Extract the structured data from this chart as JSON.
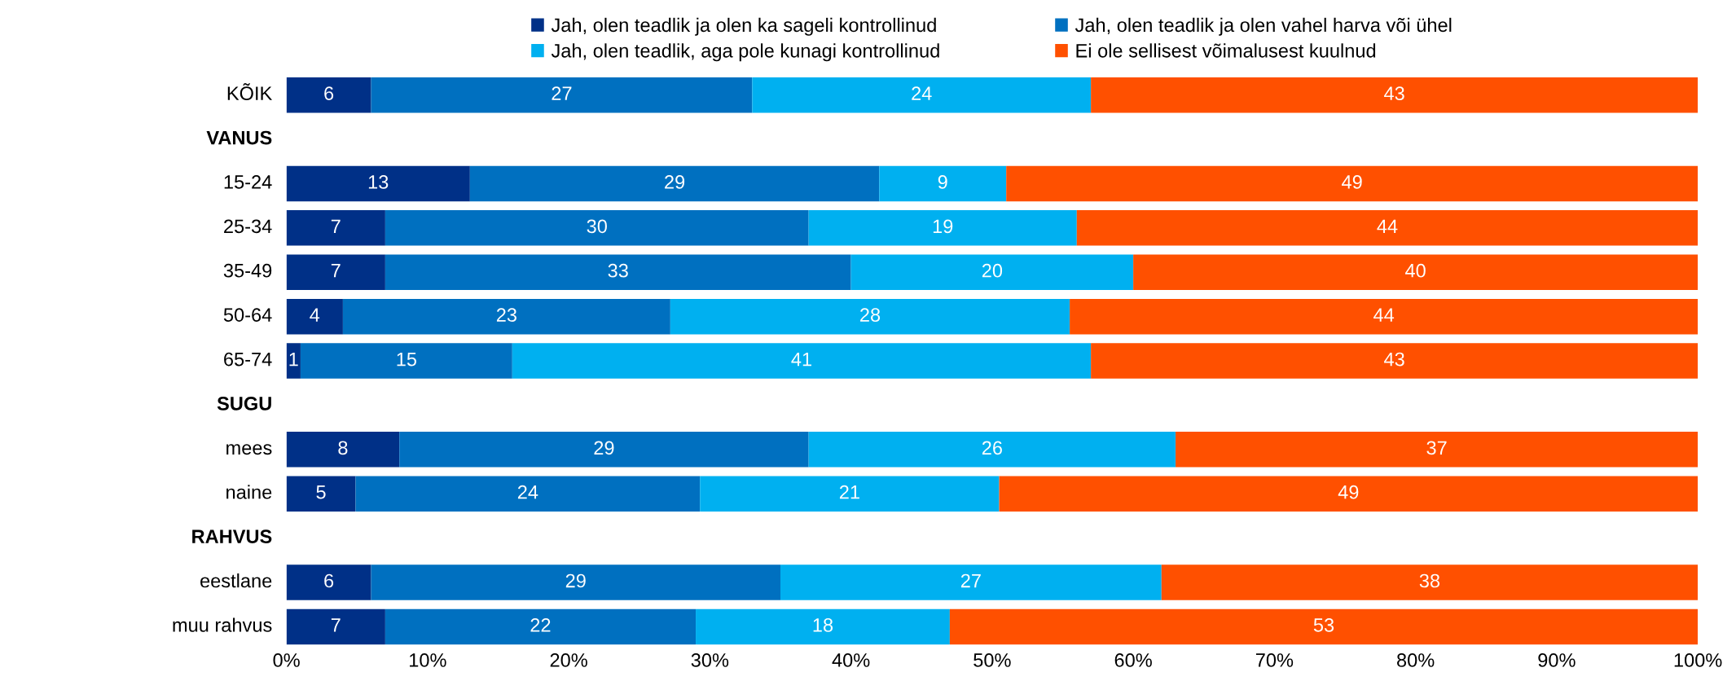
{
  "chart_data": {
    "type": "bar",
    "orientation": "horizontal",
    "stacked": true,
    "categories": [
      "KÕIK",
      "VANUS",
      "15-24",
      "25-34",
      "35-49",
      "50-64",
      "65-74",
      "SUGU",
      "mees",
      "naine",
      "RAHVUS",
      "eestlane",
      "muu rahvus"
    ],
    "series": [
      {
        "name": "Jah, olen teadlik ja olen ka sageli kontrollinud",
        "color": "#003087",
        "values": [
          6,
          null,
          13,
          7,
          7,
          4.0,
          1,
          null,
          8,
          4.9,
          null,
          6,
          7
        ],
        "value_labels": [
          "6",
          null,
          "13",
          "7",
          "7",
          "4",
          "1",
          null,
          "8",
          "5",
          null,
          "6",
          "7"
        ]
      },
      {
        "name": "Jah, olen teadlik ja olen vahel harva või ühel",
        "color": "#0070c0",
        "values": [
          27,
          null,
          29,
          30,
          33,
          23.2,
          15,
          null,
          29,
          24.4,
          null,
          29,
          22
        ],
        "value_labels": [
          "27",
          null,
          "29",
          "30",
          "33",
          "23",
          "15",
          null,
          "29",
          "24",
          null,
          "29",
          "22"
        ]
      },
      {
        "name": "Jah, olen teadlik, aga pole kunagi kontrollinud",
        "color": "#00b0f0",
        "values": [
          24,
          null,
          9,
          19,
          20,
          28.3,
          41,
          null,
          26,
          21.2,
          null,
          27,
          18
        ],
        "value_labels": [
          "24",
          null,
          "9",
          "19",
          "20",
          "28",
          "41",
          null,
          "26",
          "21",
          null,
          "27",
          "18"
        ]
      },
      {
        "name": "Ei ole sellisest võimalusest kuulnud",
        "color": "#ff5000",
        "values": [
          43,
          null,
          49,
          44,
          40,
          44.5,
          43,
          null,
          37,
          49.5,
          null,
          38,
          53
        ],
        "value_labels": [
          "43",
          null,
          "49",
          "44",
          "40",
          "44",
          "43",
          null,
          "37",
          "49",
          null,
          "38",
          "53"
        ]
      }
    ],
    "xlim": [
      0,
      100
    ],
    "xticks": [
      {
        "value": 0,
        "label": "0%"
      },
      {
        "value": 10,
        "label": "10%"
      },
      {
        "value": 20,
        "label": "20%"
      },
      {
        "value": 30,
        "label": "30%"
      },
      {
        "value": 40,
        "label": "40%"
      },
      {
        "value": 50,
        "label": "50%"
      },
      {
        "value": 60,
        "label": "60%"
      },
      {
        "value": 70,
        "label": "70%"
      },
      {
        "value": 80,
        "label": "80%"
      },
      {
        "value": 90,
        "label": "90%"
      },
      {
        "value": 100,
        "label": "100%"
      }
    ],
    "grid": false,
    "legend": "top"
  }
}
